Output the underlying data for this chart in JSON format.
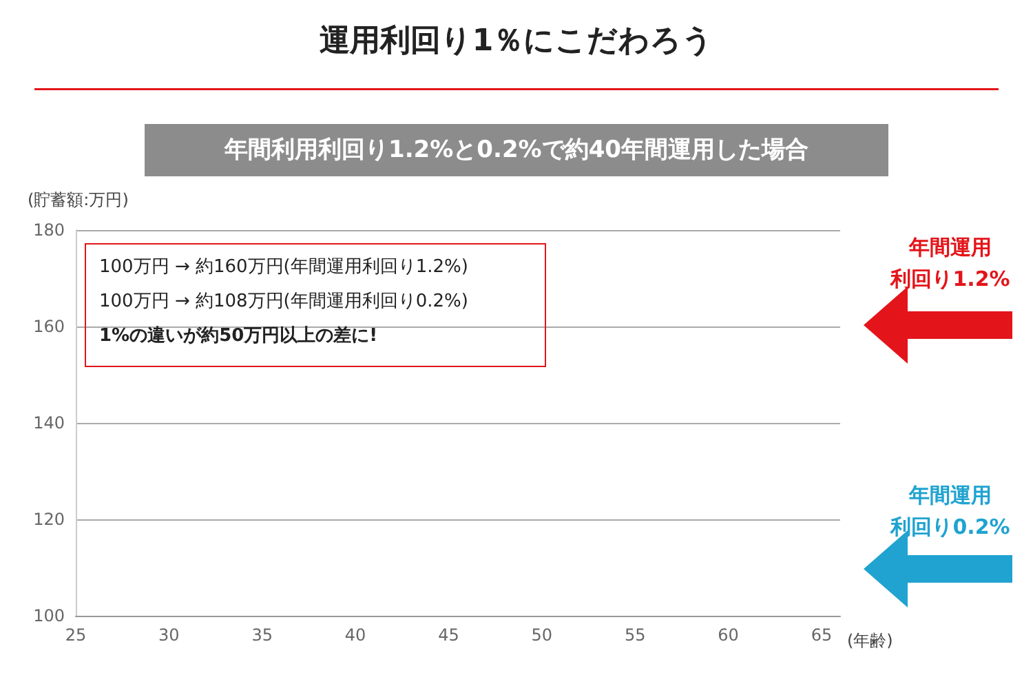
{
  "chart_data": {
    "type": "line",
    "title": "運用利回り1％にこだわろう",
    "subtitle": "年間利用利回り1.2%と0.2%で約40年間運用した場合",
    "xlabel": "(年齢)",
    "ylabel": "(貯蓄額:万円)",
    "xlim": [
      25,
      66
    ],
    "xticks": [
      25,
      30,
      35,
      40,
      45,
      50,
      55,
      60,
      65
    ],
    "ylim": [
      100,
      180
    ],
    "yticks": [
      100,
      120,
      140,
      160,
      180
    ],
    "grid": "y",
    "annotations": [
      "100万円 → 約160万円(年間運用利回り1.2%)",
      "100万円 → 約108万円(年間運用利回り0.2%)",
      "1%の違いが約50万円以上の差に!",
      "年間運用",
      "利回り1.2%",
      "年間運用",
      "利回り0.2%"
    ]
  }
}
